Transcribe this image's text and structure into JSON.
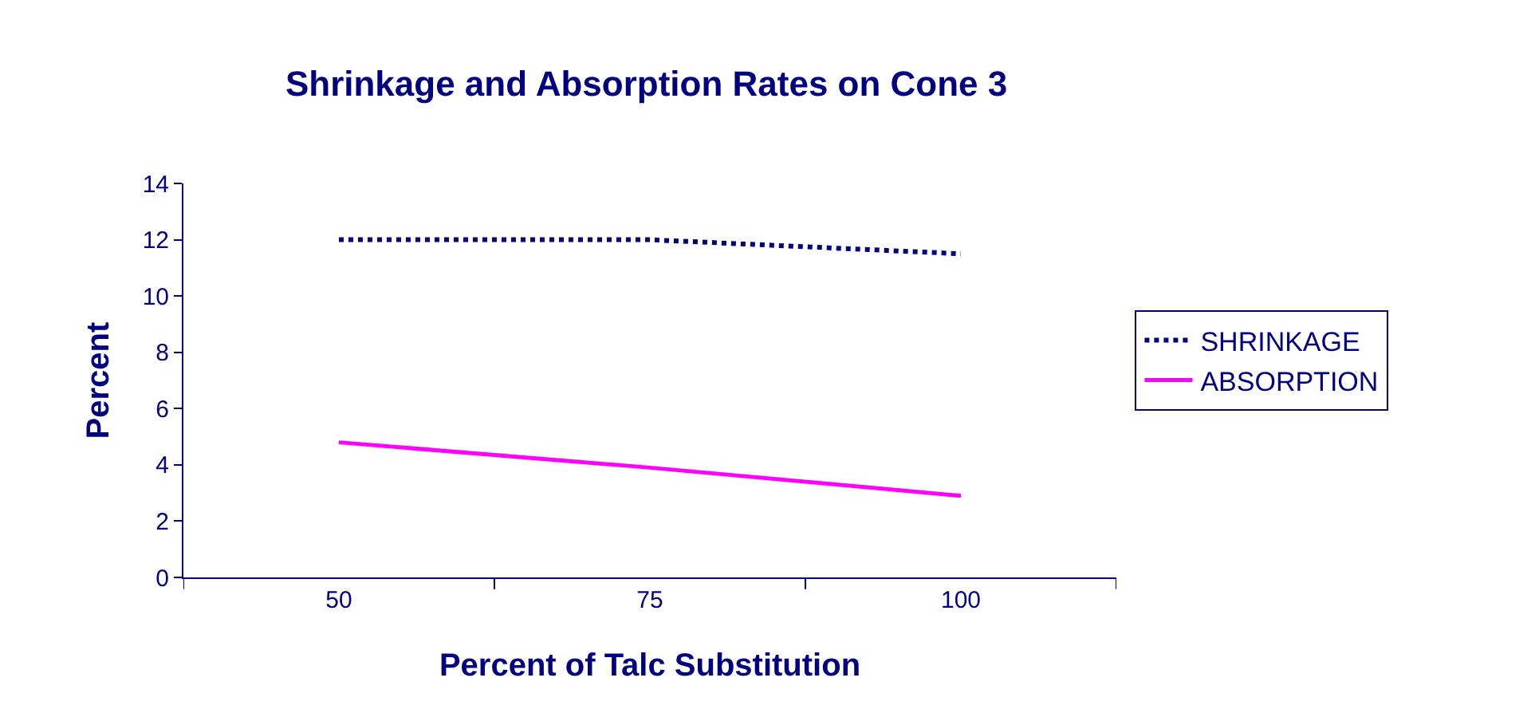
{
  "chart_data": {
    "type": "line",
    "title": "Shrinkage and Absorption Rates on Cone 3",
    "xlabel": "Percent of Talc Substitution",
    "ylabel": "Percent",
    "categories": [
      "50",
      "75",
      "100"
    ],
    "series": [
      {
        "name": "SHRINKAGE",
        "color": "#000080",
        "values": [
          12,
          12,
          11.5
        ],
        "line_style": "dotted"
      },
      {
        "name": "ABSORPTION",
        "color": "#ff00ff",
        "values": [
          4.8,
          3.9,
          2.9
        ],
        "line_style": "solid"
      }
    ],
    "ylim": [
      0,
      14
    ],
    "yticks": [
      0,
      2,
      4,
      6,
      8,
      10,
      12,
      14
    ],
    "legend": "right",
    "marker": "none"
  }
}
